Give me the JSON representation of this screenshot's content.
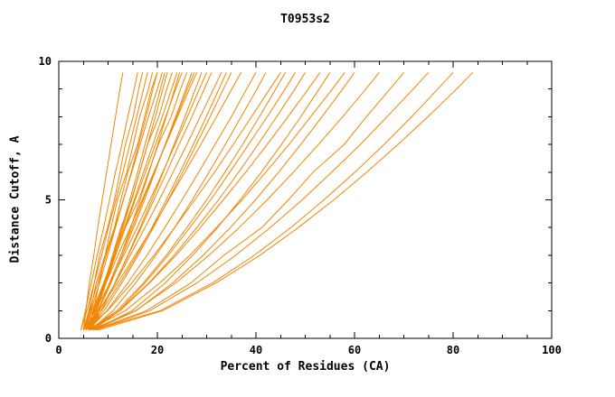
{
  "colors": {
    "curve": "#f28500",
    "axis": "#000000",
    "background": "#ffffff",
    "text": "#000000"
  },
  "chart_data": {
    "type": "line",
    "title": "T0953s2",
    "xlabel": "Percent of Residues (CA)",
    "ylabel": "Distance Cutoff, A",
    "xlim": [
      0,
      100
    ],
    "ylim": [
      0,
      10
    ],
    "x_ticks": [
      0,
      20,
      40,
      60,
      80,
      100
    ],
    "x_minor_ticks": [
      5,
      10,
      15,
      25,
      30,
      35,
      45,
      50,
      55,
      65,
      70,
      75,
      85,
      90,
      95
    ],
    "y_ticks": [
      0,
      5,
      10
    ],
    "y_minor_ticks": [
      1,
      2,
      3,
      4,
      6,
      7,
      8,
      9
    ],
    "grid": false,
    "legend": "none",
    "cutoffs": [
      0.3,
      1,
      2,
      3,
      4,
      5,
      6,
      7,
      8,
      9,
      9.6
    ],
    "series": [
      [
        5,
        5.5,
        6.2,
        7.1,
        7.9,
        8.8,
        9.7,
        10.6,
        11.5,
        12.4,
        13
      ],
      [
        5,
        6.1,
        7.2,
        8.3,
        9.9,
        11.3,
        12.4,
        13.5,
        15.1,
        16.2,
        17
      ],
      [
        4.5,
        5.7,
        7.2,
        8.7,
        10.1,
        11.6,
        13,
        14.4,
        15.8,
        17.2,
        18
      ],
      [
        5.5,
        6.4,
        7.6,
        9.4,
        10.6,
        11.9,
        13.8,
        15.1,
        16.4,
        18.2,
        19
      ],
      [
        5,
        6.5,
        8.3,
        9.9,
        11.5,
        13.1,
        14.7,
        16.2,
        17.7,
        19.1,
        20
      ],
      [
        6,
        7,
        8.2,
        9.4,
        11.3,
        12.6,
        14,
        16,
        17.4,
        18.8,
        20
      ],
      [
        5,
        6.2,
        7.9,
        9.6,
        11.4,
        13.1,
        14.8,
        16.5,
        18.2,
        20,
        21
      ],
      [
        5.5,
        7.3,
        9.4,
        11.3,
        13,
        14.7,
        16.4,
        18,
        19.6,
        21.1,
        22
      ],
      [
        6,
        7.1,
        9.3,
        10.9,
        12.6,
        14.8,
        16.4,
        18,
        20.3,
        21.9,
        23
      ],
      [
        5,
        6.9,
        9.1,
        11.2,
        13.3,
        15.3,
        17.2,
        19.1,
        21,
        22.9,
        24
      ],
      [
        6.5,
        7.7,
        9.6,
        11.5,
        13.5,
        15.5,
        17.6,
        19.6,
        21.7,
        23.7,
        25
      ],
      [
        5,
        6.6,
        9.4,
        11.5,
        13.5,
        16.2,
        18.2,
        20.2,
        22.8,
        24.7,
        26
      ],
      [
        6,
        8,
        10.6,
        12.9,
        15.2,
        17.4,
        19.5,
        21.6,
        23.7,
        25.8,
        27
      ],
      [
        5.5,
        7.2,
        9.6,
        12,
        14.5,
        16.9,
        19.3,
        21.7,
        24.1,
        26.5,
        28
      ],
      [
        6,
        8.6,
        11.4,
        14,
        16.5,
        18.9,
        21.2,
        23.4,
        25.6,
        27.7,
        29
      ],
      [
        5,
        7.4,
        10.4,
        13.2,
        15.9,
        18.5,
        21.1,
        23.6,
        26.1,
        28.5,
        30
      ],
      [
        6.5,
        8.6,
        11.4,
        14.1,
        16.7,
        19.3,
        21.9,
        24.4,
        27,
        29.5,
        31
      ],
      [
        5.5,
        8.2,
        11.5,
        14.5,
        17.5,
        20.4,
        23.2,
        26,
        28.7,
        31.4,
        33
      ],
      [
        6,
        9.2,
        12.8,
        16.1,
        19.2,
        22.2,
        25.1,
        27.9,
        30.7,
        33.4,
        35
      ],
      [
        5,
        8.1,
        11.9,
        15.5,
        19,
        22.3,
        25.6,
        28.8,
        32,
        35.1,
        37
      ],
      [
        6,
        9.8,
        14,
        17.9,
        21.5,
        25,
        28.4,
        31.7,
        35,
        38.1,
        40
      ],
      [
        6.5,
        11,
        15.6,
        19.7,
        23.5,
        27.1,
        30.5,
        33.8,
        37,
        40.2,
        42
      ],
      [
        5.5,
        9.9,
        14.8,
        19.3,
        23.5,
        27.6,
        31.6,
        35.4,
        39.1,
        42.8,
        45
      ],
      [
        6,
        11.8,
        17.2,
        21.8,
        26,
        30,
        33.7,
        37.3,
        40.7,
        44,
        46
      ],
      [
        7,
        12.2,
        17.5,
        22.2,
        26.6,
        30.8,
        34.7,
        38.5,
        42.3,
        45.9,
        48
      ],
      [
        6,
        12.3,
        18.3,
        23.4,
        28,
        32.4,
        36.5,
        40.4,
        44.2,
        47.9,
        50
      ],
      [
        6.5,
        12.4,
        18.4,
        23.8,
        28.7,
        33.4,
        37.9,
        42.3,
        46.5,
        50.6,
        53
      ],
      [
        7,
        14.9,
        21.6,
        27.2,
        32.2,
        36.8,
        41.1,
        45.2,
        49.1,
        52.8,
        55
      ],
      [
        6,
        13.5,
        20.5,
        26.6,
        32,
        37.2,
        42,
        46.7,
        51.1,
        55.5,
        58
      ],
      [
        7,
        15.7,
        23.1,
        29.3,
        34.8,
        39.9,
        44.6,
        49.1,
        53.4,
        57.6,
        60
      ],
      [
        6.5,
        15.6,
        23.7,
        30.5,
        36.6,
        42.3,
        47.6,
        52.7,
        57.6,
        62.3,
        65
      ],
      [
        7,
        17.8,
        26.8,
        33.5,
        41.2,
        46.6,
        51.6,
        57.9,
        62.4,
        67.2,
        70
      ],
      [
        7.5,
        18.5,
        28,
        35.9,
        42.9,
        49.4,
        55.4,
        61.2,
        66.6,
        71.9,
        75
      ],
      [
        7,
        20.6,
        31.2,
        39.7,
        47.1,
        53.8,
        60.1,
        66,
        71.6,
        76.9,
        80
      ],
      [
        8,
        21.1,
        31.9,
        40.8,
        48.6,
        55.8,
        62.5,
        68.8,
        74.9,
        80.7,
        84
      ],
      [
        4.5,
        5.4,
        6.6,
        7.8,
        9.1,
        10.3,
        11.5,
        12.8,
        14,
        15.3,
        16
      ],
      [
        5.5,
        7.9,
        10.4,
        12.6,
        14.6,
        16.5,
        18.3,
        20.1,
        21.8,
        23.5,
        24.5
      ],
      [
        6,
        7.5,
        9.4,
        11.1,
        12.8,
        14.4,
        16,
        17.5,
        19.1,
        20.6,
        21.5
      ],
      [
        5,
        8.7,
        12.4,
        15.8,
        18.9,
        21.8,
        24.6,
        27.3,
        29.9,
        32.5,
        34
      ],
      [
        6.5,
        8.1,
        10.3,
        12.6,
        14.9,
        17.1,
        19.4,
        21.6,
        23.9,
        26.1,
        27.5
      ]
    ]
  }
}
